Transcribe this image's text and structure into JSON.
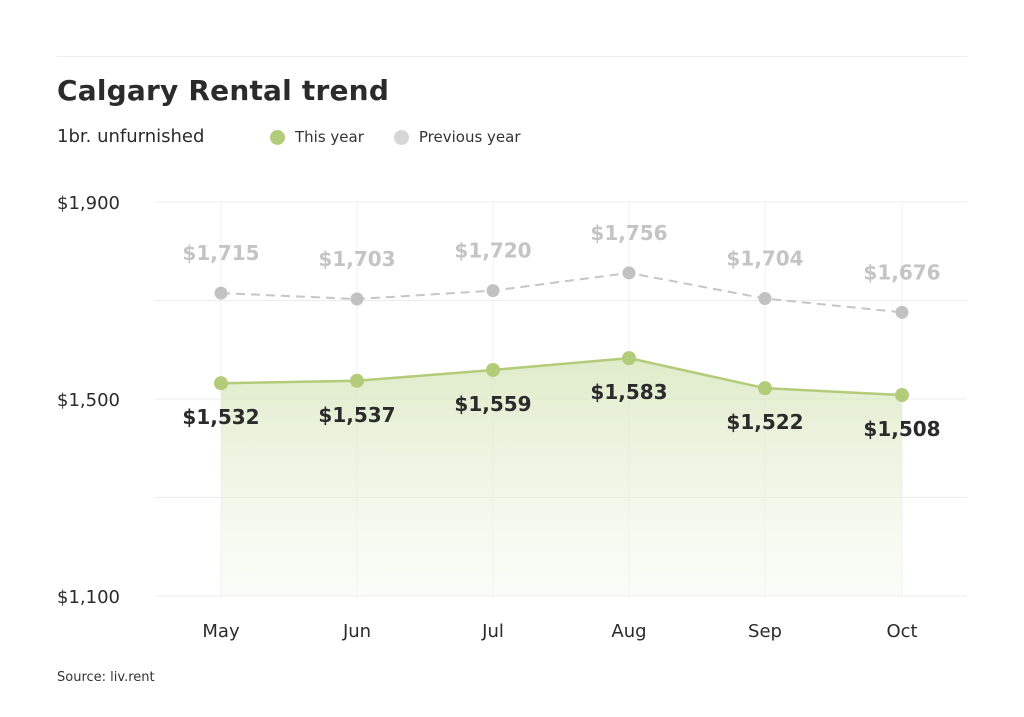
{
  "source": "Source: liv.rent",
  "chart_data": {
    "type": "line",
    "title": "Calgary Rental trend",
    "subtitle": "1br. unfurnished",
    "categories": [
      "May",
      "Jun",
      "Jul",
      "Aug",
      "Sep",
      "Oct"
    ],
    "series": [
      {
        "name": "This year",
        "values": [
          1532,
          1537,
          1559,
          1583,
          1522,
          1508
        ],
        "labels": [
          "$1,532",
          "$1,537",
          "$1,559",
          "$1,583",
          "$1,522",
          "$1,508"
        ],
        "color": "#b3cc7a",
        "style": "solid-area"
      },
      {
        "name": "Previous year",
        "values": [
          1715,
          1703,
          1720,
          1756,
          1704,
          1676
        ],
        "labels": [
          "$1,715",
          "$1,703",
          "$1,720",
          "$1,756",
          "$1,704",
          "$1,676"
        ],
        "color": "#c6c6c6",
        "style": "dashed"
      }
    ],
    "ylim": [
      1100,
      1900
    ],
    "yticks": [
      1100,
      1500,
      1900
    ],
    "ytick_labels": [
      "$1,100",
      "$1,500",
      "$1,900"
    ],
    "grid": true,
    "legend_placement": "top"
  }
}
